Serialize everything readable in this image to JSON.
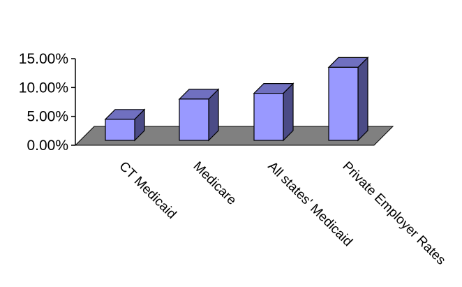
{
  "chart_data": {
    "type": "bar",
    "title": "",
    "xlabel": "",
    "ylabel": "",
    "categories": [
      "CT Medicaid",
      "Medicare",
      "All states' Medicaid",
      "Private Employer Rates"
    ],
    "values": [
      0.045,
      0.08,
      0.09,
      0.135
    ],
    "ylim": [
      0,
      0.15
    ],
    "yticks": [
      {
        "value": 0.0,
        "label": "0.00%"
      },
      {
        "value": 0.05,
        "label": "5.00%"
      },
      {
        "value": 0.1,
        "label": "10.00%"
      },
      {
        "value": 0.15,
        "label": "15.00%"
      }
    ],
    "grid": false,
    "three_d": true,
    "colors": {
      "bar_front": "#9999ff",
      "bar_side": "#4b4b86",
      "bar_top": "#7070c0",
      "floor": "#808080",
      "axis": "#000000"
    }
  }
}
